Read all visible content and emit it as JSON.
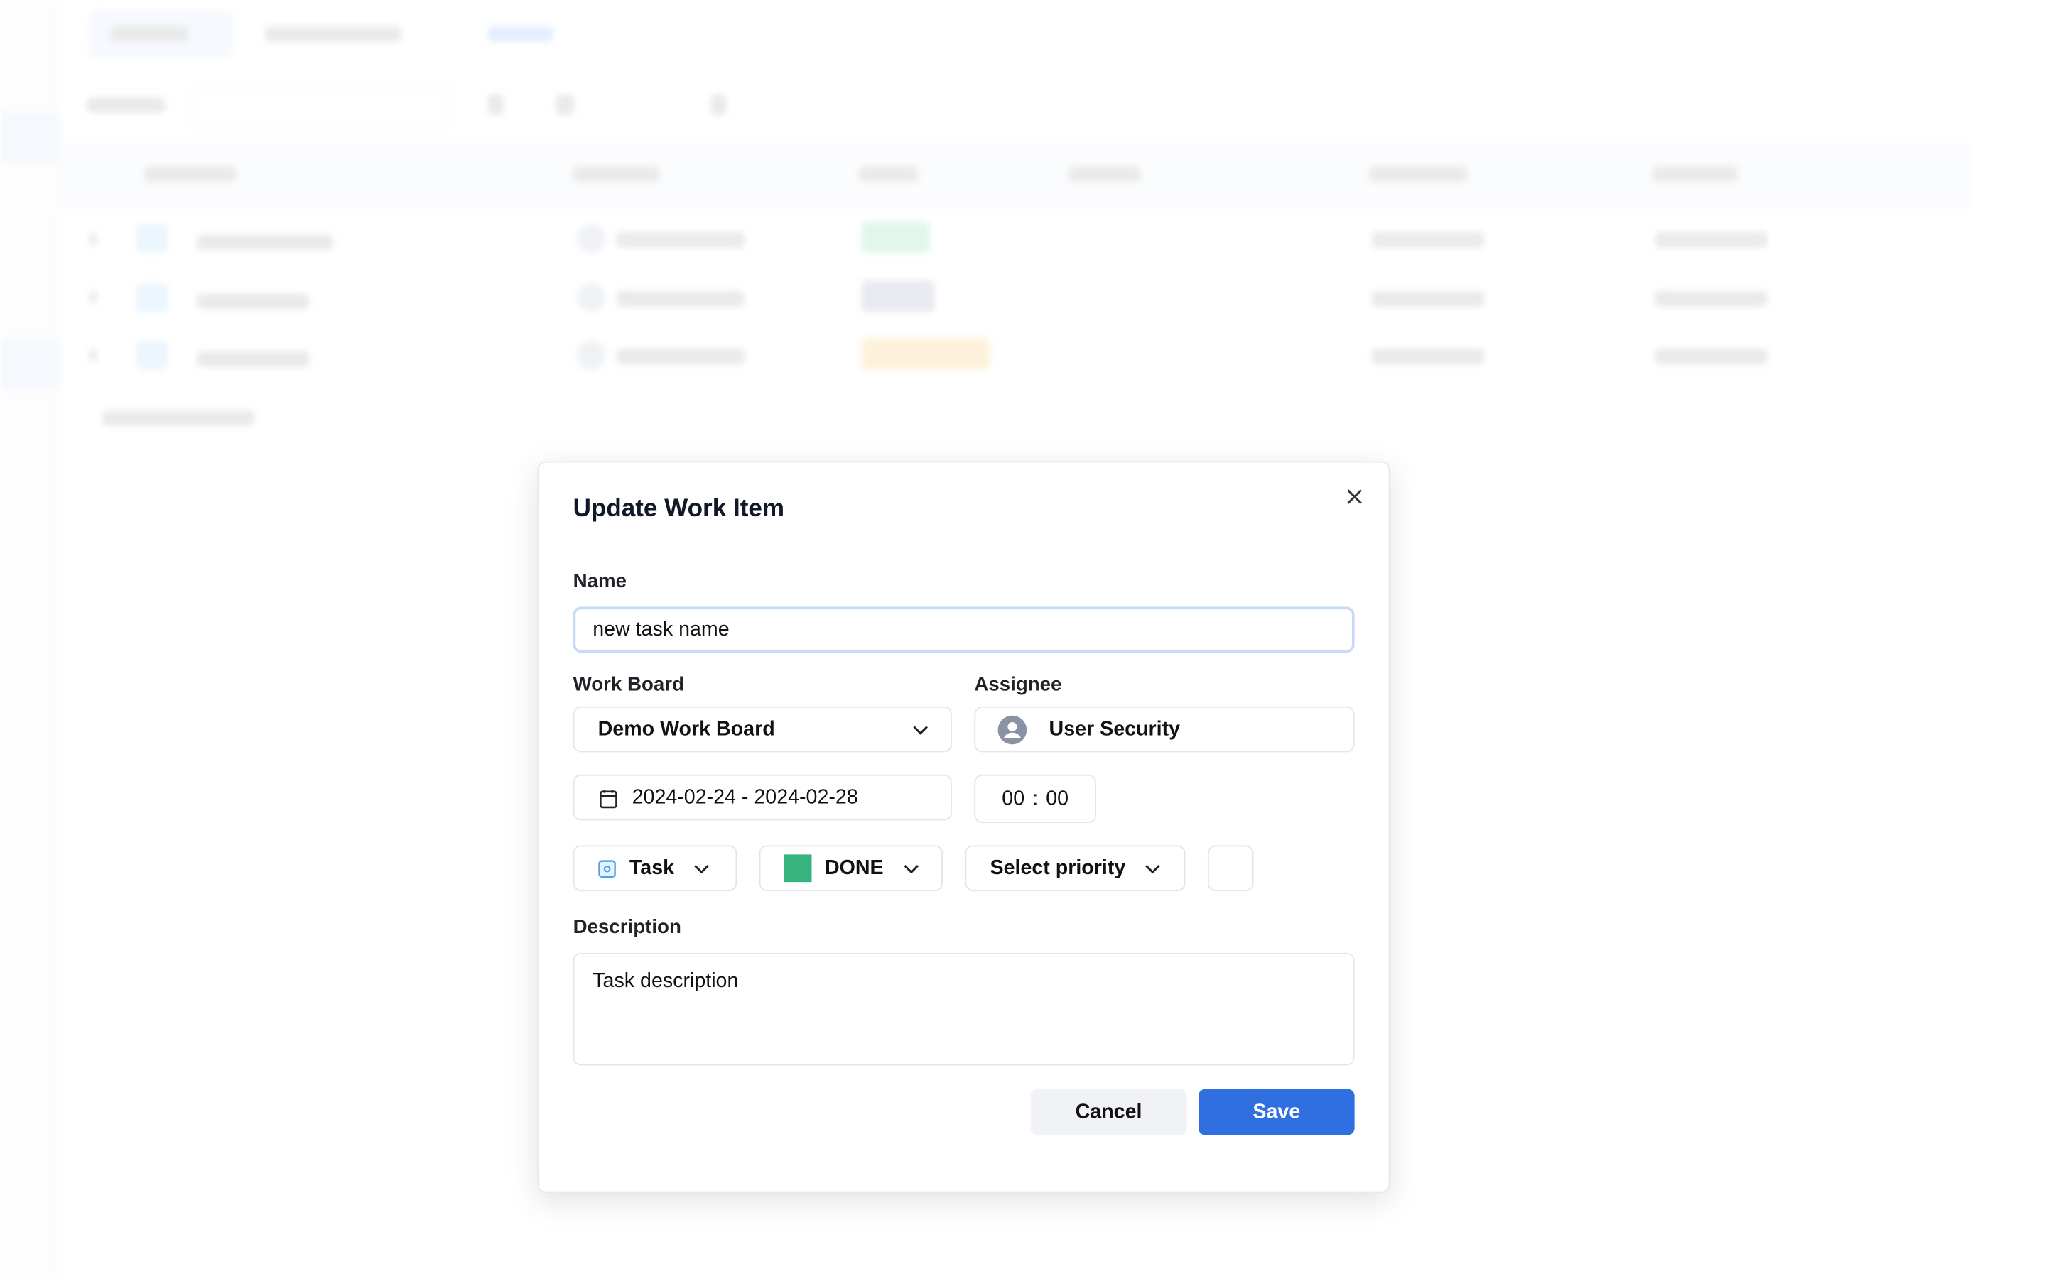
{
  "dialog": {
    "title": "Update Work Item",
    "name_label": "Name",
    "name_value": "new task name",
    "work_board_label": "Work Board",
    "work_board_value": "Demo Work Board",
    "assignee_label": "Assignee",
    "assignee_value": "User Security",
    "date_range": "2024-02-24 - 2024-02-28",
    "time_hours": "00",
    "time_sep": ":",
    "time_minutes": "00",
    "type_value": "Task",
    "status_value": "DONE",
    "status_color": "#36b37e",
    "priority_placeholder": "Select priority",
    "description_label": "Description",
    "description_value": "Task description",
    "cancel_label": "Cancel",
    "save_label": "Save",
    "accent": "#2f6fe0"
  },
  "background": {
    "status_colors": [
      "#c8efdc",
      "#d6d9e2",
      "#fde6bf"
    ]
  }
}
